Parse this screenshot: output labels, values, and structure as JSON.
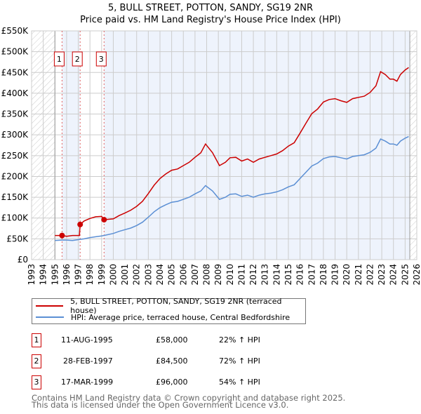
{
  "title": {
    "line1": "5, BULL STREET, POTTON, SANDY, SG19 2NR",
    "line2": "Price paid vs. HM Land Registry's House Price Index (HPI)"
  },
  "chart_data": {
    "type": "line",
    "xlim": [
      1993,
      2026
    ],
    "ylim": [
      0,
      550000
    ],
    "y_ticks": [
      {
        "v": 0,
        "label": "£0"
      },
      {
        "v": 50000,
        "label": "£50K"
      },
      {
        "v": 100000,
        "label": "£100K"
      },
      {
        "v": 150000,
        "label": "£150K"
      },
      {
        "v": 200000,
        "label": "£200K"
      },
      {
        "v": 250000,
        "label": "£250K"
      },
      {
        "v": 300000,
        "label": "£300K"
      },
      {
        "v": 350000,
        "label": "£350K"
      },
      {
        "v": 400000,
        "label": "£400K"
      },
      {
        "v": 450000,
        "label": "£450K"
      },
      {
        "v": 500000,
        "label": "£500K"
      },
      {
        "v": 550000,
        "label": "£550K"
      }
    ],
    "x_ticks": [
      "1993",
      "1994",
      "1995",
      "1996",
      "1997",
      "1998",
      "1999",
      "2000",
      "2001",
      "2002",
      "2003",
      "2004",
      "2005",
      "2006",
      "2007",
      "2008",
      "2009",
      "2010",
      "2011",
      "2012",
      "2013",
      "2014",
      "2015",
      "2016",
      "2017",
      "2018",
      "2019",
      "2020",
      "2021",
      "2022",
      "2023",
      "2024",
      "2025",
      "2026"
    ],
    "data_range": [
      1995.0,
      2025.4
    ],
    "colors": {
      "property": "#cc0000",
      "hpi": "#5b8fd4",
      "shade": "#eef3fc"
    },
    "series": [
      {
        "name": "5, BULL STREET, POTTON, SANDY, SG19 2NR (terraced house)",
        "color": "#cc0000",
        "x": [
          1995.0,
          1995.61,
          1996,
          1996.5,
          1997.1,
          1997.16,
          1997.5,
          1998,
          1998.5,
          1999,
          1999.21,
          2000,
          2000.5,
          2001,
          2001.5,
          2002,
          2002.5,
          2003,
          2003.5,
          2004,
          2004.5,
          2005,
          2005.5,
          2006,
          2006.5,
          2007,
          2007.5,
          2007.9,
          2008.5,
          2009.1,
          2009.6,
          2010,
          2010.5,
          2011,
          2011.5,
          2012,
          2012.5,
          2013,
          2013.5,
          2014,
          2014.5,
          2015,
          2015.5,
          2016,
          2016.5,
          2017,
          2017.5,
          2018,
          2018.5,
          2019,
          2019.5,
          2020,
          2020.5,
          2021,
          2021.5,
          2022,
          2022.5,
          2022.9,
          2023.3,
          2023.7,
          2024,
          2024.3,
          2024.6,
          2025,
          2025.3
        ],
        "y": [
          58000,
          58000,
          56000,
          58000,
          58000,
          84500,
          93000,
          99000,
          103000,
          104000,
          96000,
          98000,
          106000,
          112000,
          119000,
          128000,
          140000,
          159000,
          179000,
          195000,
          206000,
          215000,
          218000,
          226000,
          234000,
          246000,
          257000,
          278000,
          257000,
          226000,
          234000,
          245000,
          246000,
          237000,
          242000,
          234000,
          242000,
          246000,
          250000,
          254000,
          262000,
          273000,
          281000,
          304000,
          328000,
          351000,
          362000,
          379000,
          385000,
          387000,
          382000,
          378000,
          387000,
          390000,
          393000,
          402000,
          418000,
          452000,
          445000,
          434000,
          434000,
          429000,
          445000,
          456000,
          462000
        ]
      },
      {
        "name": "HPI: Average price, terraced house, Central Bedfordshire",
        "color": "#5b8fd4",
        "x": [
          1995.0,
          1995.6,
          1996,
          1996.5,
          1997,
          1997.5,
          1998,
          1998.5,
          1999,
          1999.2,
          2000,
          2000.5,
          2001,
          2001.5,
          2002,
          2002.5,
          2003,
          2003.5,
          2004,
          2004.5,
          2005,
          2005.5,
          2006,
          2006.5,
          2007,
          2007.5,
          2007.9,
          2008.5,
          2009.1,
          2009.6,
          2010,
          2010.5,
          2011,
          2011.5,
          2012,
          2012.5,
          2013,
          2013.5,
          2014,
          2014.5,
          2015,
          2015.5,
          2016,
          2016.5,
          2017,
          2017.5,
          2018,
          2018.5,
          2019,
          2019.5,
          2020,
          2020.5,
          2021,
          2021.5,
          2022,
          2022.5,
          2022.9,
          2023.3,
          2023.7,
          2024,
          2024.3,
          2024.6,
          2025,
          2025.3
        ],
        "y": [
          46000,
          47000,
          47000,
          46000,
          48000,
          50000,
          53000,
          55000,
          57000,
          58000,
          63000,
          68000,
          72000,
          76000,
          82000,
          90000,
          102000,
          115000,
          125000,
          132000,
          138000,
          140000,
          145000,
          150000,
          158000,
          165000,
          178000,
          165000,
          145000,
          150000,
          157000,
          158000,
          152000,
          155000,
          150000,
          155000,
          158000,
          160000,
          163000,
          168000,
          175000,
          180000,
          195000,
          210000,
          225000,
          232000,
          243000,
          247000,
          248000,
          245000,
          242000,
          248000,
          250000,
          252000,
          258000,
          268000,
          290000,
          285000,
          278000,
          278000,
          275000,
          285000,
          292000,
          296000
        ]
      }
    ],
    "sales": [
      {
        "n": "1",
        "x": 1995.61,
        "y": 58000
      },
      {
        "n": "2",
        "x": 1997.16,
        "y": 84500
      },
      {
        "n": "3",
        "x": 1999.21,
        "y": 96000
      }
    ]
  },
  "legend": {
    "property": "5, BULL STREET, POTTON, SANDY, SG19 2NR (terraced house)",
    "hpi": "HPI: Average price, terraced house, Central Bedfordshire"
  },
  "transactions": [
    {
      "n": "1",
      "date": "11-AUG-1995",
      "price": "£58,000",
      "hpi": "22% ↑ HPI"
    },
    {
      "n": "2",
      "date": "28-FEB-1997",
      "price": "£84,500",
      "hpi": "72% ↑ HPI"
    },
    {
      "n": "3",
      "date": "17-MAR-1999",
      "price": "£96,000",
      "hpi": "54% ↑ HPI"
    }
  ],
  "footer": {
    "line1": "Contains HM Land Registry data © Crown copyright and database right 2025.",
    "line2": "This data is licensed under the Open Government Licence v3.0."
  }
}
